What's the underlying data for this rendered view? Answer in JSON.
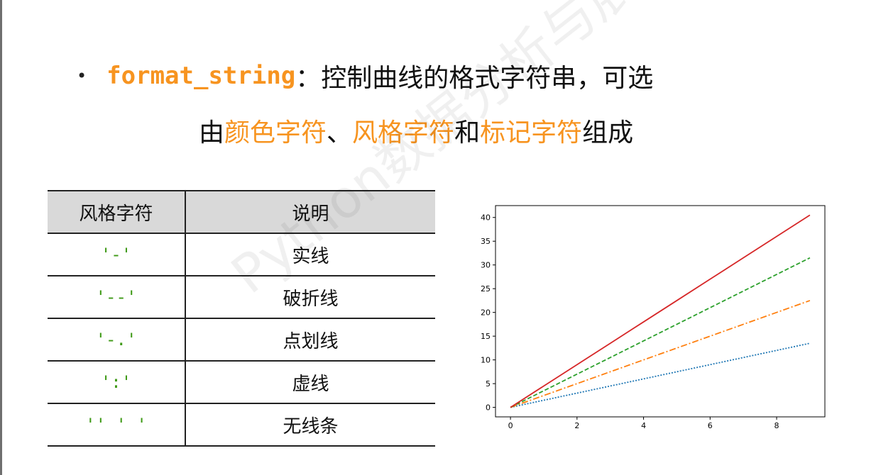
{
  "header": {
    "bullet": "•",
    "param_name": "format_string",
    "colon": "：",
    "line1_text": "控制曲线的格式字符串，可选",
    "line2": [
      {
        "text": "由",
        "highlight": false
      },
      {
        "text": "颜色字符",
        "highlight": true
      },
      {
        "text": "、",
        "highlight": false
      },
      {
        "text": "风格字符",
        "highlight": true
      },
      {
        "text": "和",
        "highlight": false
      },
      {
        "text": "标记字符",
        "highlight": true
      },
      {
        "text": "组成",
        "highlight": false
      }
    ]
  },
  "table": {
    "headers": [
      "风格字符",
      "说明"
    ],
    "rows": [
      {
        "code": "'-'",
        "desc": "实线"
      },
      {
        "code": "'--'",
        "desc": "破折线"
      },
      {
        "code": "'-.'",
        "desc": "点划线"
      },
      {
        "code": "':'",
        "desc": "虚线"
      },
      {
        "code": "'' ' '",
        "desc": "无线条"
      }
    ]
  },
  "watermark": "Python数据分析与展示",
  "colors": {
    "accent": "#f79420",
    "code_green": "#3f9a17",
    "header_bg": "#d9d9d9"
  },
  "chart_data": {
    "type": "line",
    "x": [
      0,
      1,
      2,
      3,
      4,
      5,
      6,
      7,
      8,
      9
    ],
    "series": [
      {
        "color": "#1f77b4",
        "style": "dotted",
        "slope": 1.5,
        "values": [
          0,
          1.5,
          3,
          4.5,
          6,
          7.5,
          9,
          10.5,
          12,
          13.5
        ]
      },
      {
        "color": "#ff7f0e",
        "style": "dashdot",
        "slope": 2.5,
        "values": [
          0,
          2.5,
          5,
          7.5,
          10,
          12.5,
          15,
          17.5,
          20,
          22.5
        ]
      },
      {
        "color": "#2ca02c",
        "style": "dashed",
        "slope": 3.5,
        "values": [
          0,
          3.5,
          7,
          10.5,
          14,
          17.5,
          21,
          24.5,
          28,
          31.5
        ]
      },
      {
        "color": "#d62728",
        "style": "solid",
        "slope": 4.5,
        "values": [
          0,
          4.5,
          9,
          13.5,
          18,
          22.5,
          27,
          31.5,
          36,
          40.5
        ]
      }
    ],
    "xticks": [
      0,
      2,
      4,
      6,
      8
    ],
    "yticks": [
      0,
      5,
      10,
      15,
      20,
      25,
      30,
      35,
      40
    ],
    "xlim": [
      -0.45,
      9.45
    ],
    "ylim": [
      -2.0,
      42.5
    ],
    "grid": false
  }
}
